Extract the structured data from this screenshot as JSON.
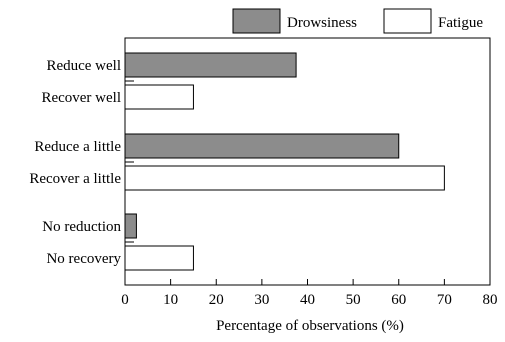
{
  "chart_data": {
    "type": "bar",
    "orientation": "horizontal",
    "title": "",
    "xlabel": "Percentage of observations (%)",
    "ylabel": "",
    "xlim": [
      0,
      80
    ],
    "x_ticks": [
      0,
      10,
      20,
      30,
      40,
      50,
      60,
      70,
      80
    ],
    "grid": false,
    "legend_position": "top-right",
    "categories": [
      "Reduce well",
      "Recover well",
      "Reduce a little",
      "Recover a little",
      "No reduction",
      "No recovery"
    ],
    "series": [
      {
        "name": "Drowsiness",
        "color": "#8c8c8c",
        "values": [
          37.5,
          null,
          60,
          null,
          2.5,
          null
        ]
      },
      {
        "name": "Fatigue",
        "color": "#ffffff",
        "values": [
          null,
          15,
          null,
          70,
          null,
          15
        ]
      }
    ]
  }
}
